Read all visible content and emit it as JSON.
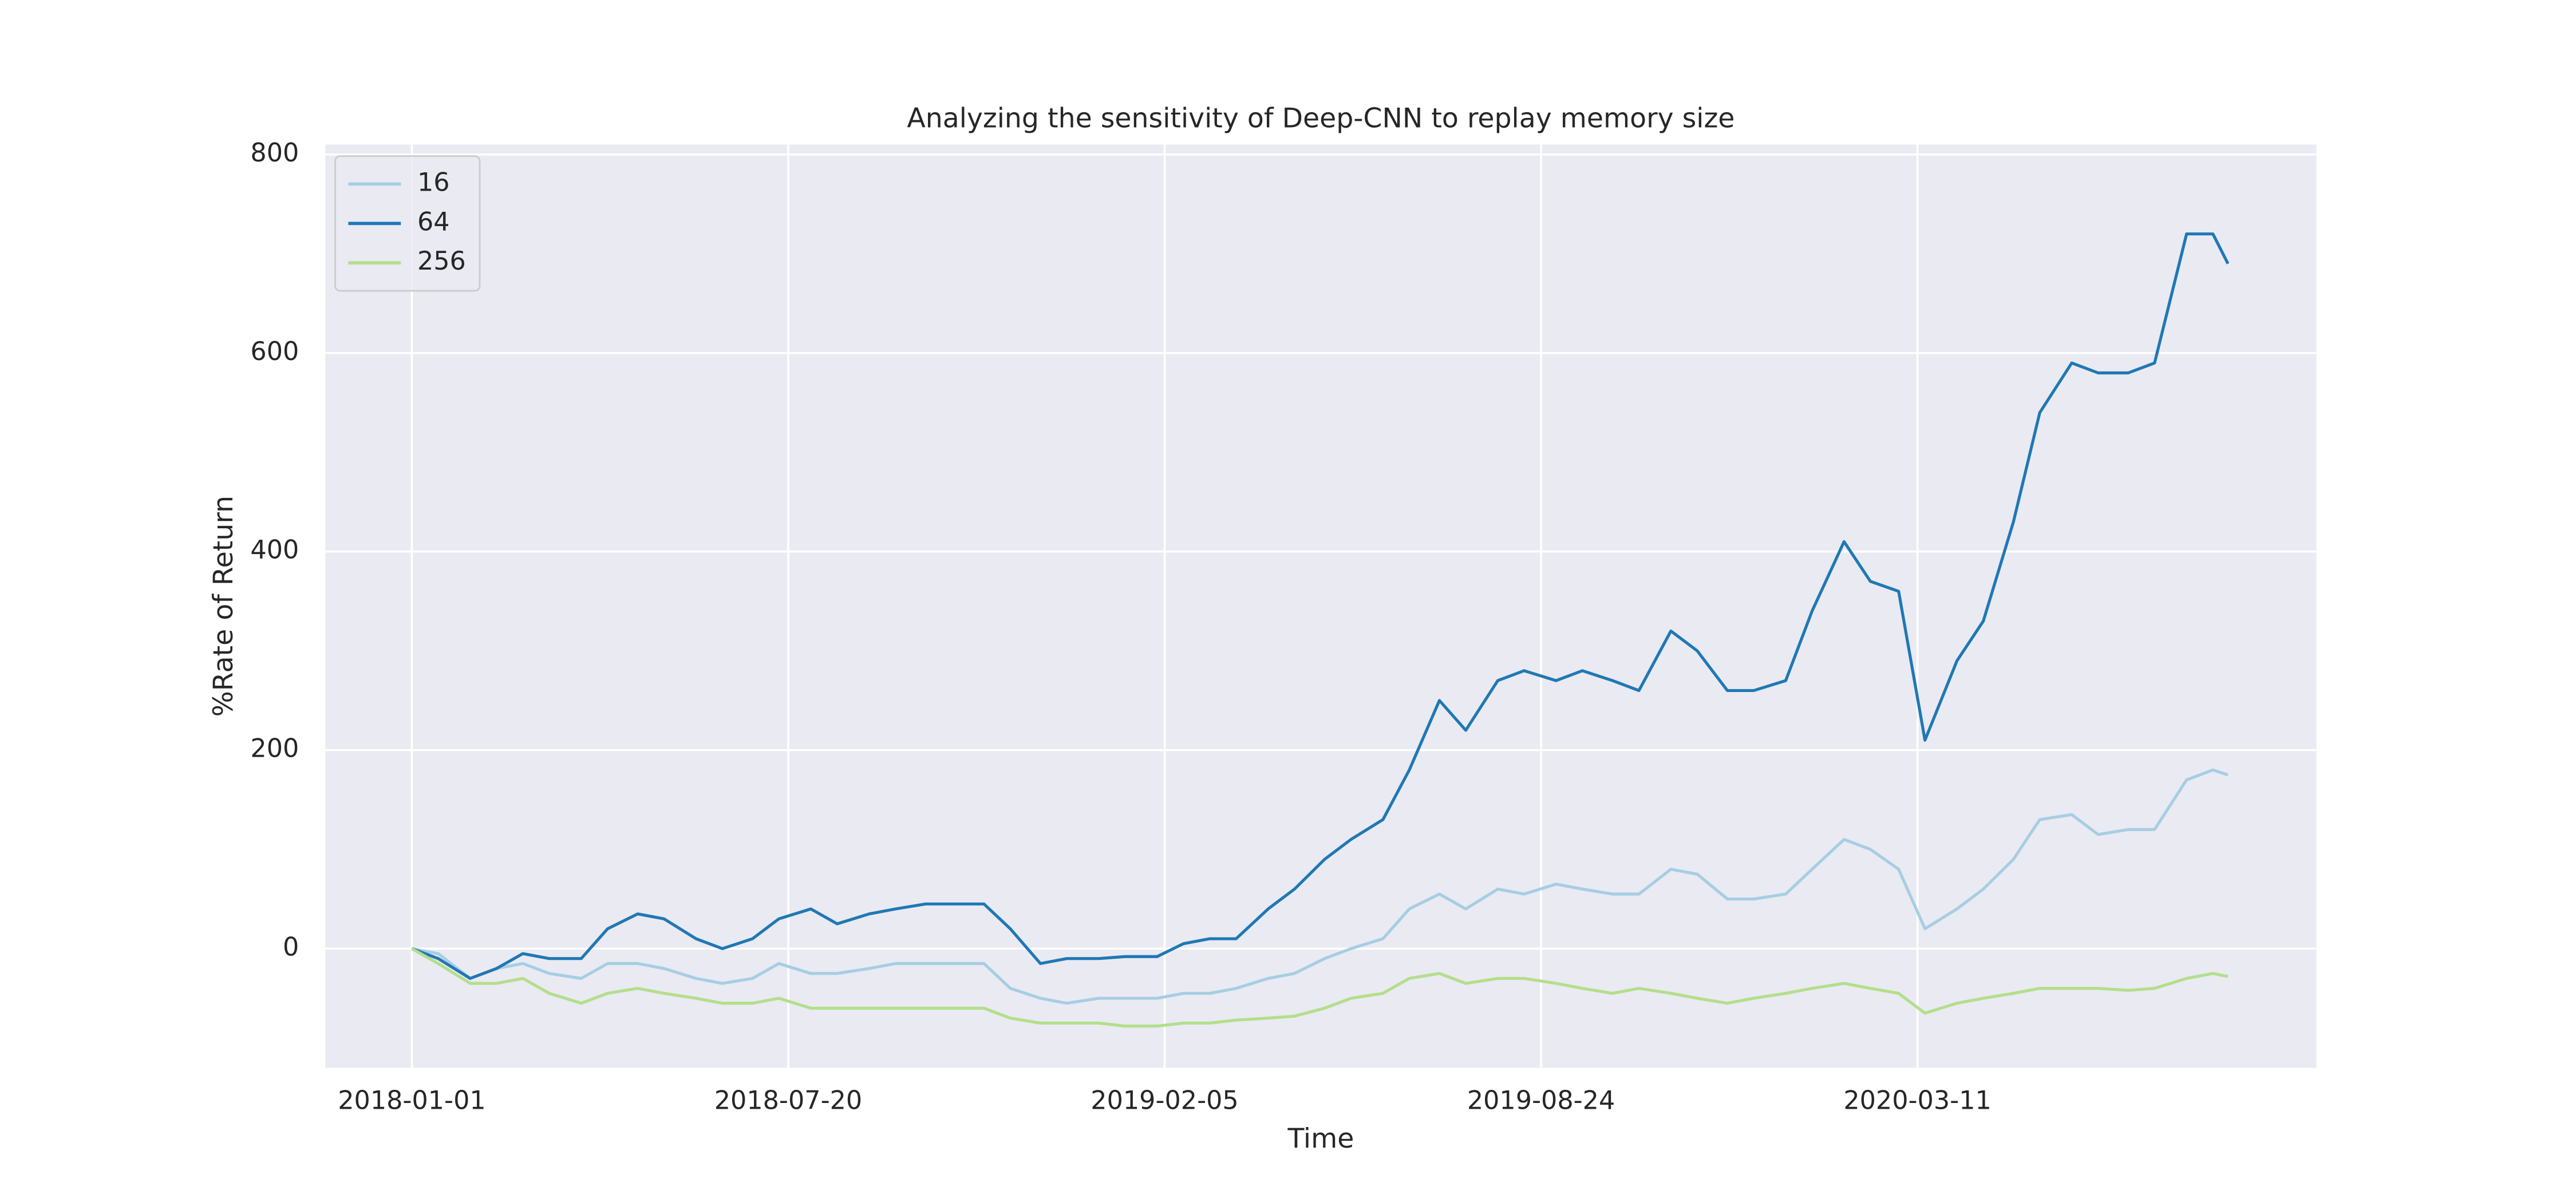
{
  "chart_data": {
    "type": "line",
    "title": "Analyzing the sensitivity of Deep-CNN to replay memory size",
    "x_label": "Time",
    "y_label": "%Rate of Return",
    "x": [
      "2018-01-01",
      "2018-01-15",
      "2018-02-01",
      "2018-02-15",
      "2018-03-01",
      "2018-03-15",
      "2018-04-01",
      "2018-04-15",
      "2018-05-01",
      "2018-05-15",
      "2018-06-01",
      "2018-06-15",
      "2018-07-01",
      "2018-07-15",
      "2018-08-01",
      "2018-08-15",
      "2018-09-01",
      "2018-09-15",
      "2018-10-01",
      "2018-10-15",
      "2018-11-01",
      "2018-11-15",
      "2018-12-01",
      "2018-12-15",
      "2019-01-01",
      "2019-01-15",
      "2019-02-01",
      "2019-02-15",
      "2019-03-01",
      "2019-03-15",
      "2019-04-01",
      "2019-04-15",
      "2019-05-01",
      "2019-05-15",
      "2019-06-01",
      "2019-06-15",
      "2019-07-01",
      "2019-07-15",
      "2019-08-01",
      "2019-08-15",
      "2019-09-01",
      "2019-09-15",
      "2019-10-01",
      "2019-10-15",
      "2019-11-01",
      "2019-11-15",
      "2019-12-01",
      "2019-12-15",
      "2020-01-01",
      "2020-01-15",
      "2020-02-01",
      "2020-02-15",
      "2020-03-01",
      "2020-03-15",
      "2020-04-01",
      "2020-04-15",
      "2020-05-01",
      "2020-05-15",
      "2020-06-01",
      "2020-06-15",
      "2020-07-01",
      "2020-07-15",
      "2020-08-01",
      "2020-08-15",
      "2020-08-23"
    ],
    "series": [
      {
        "name": "16",
        "color": "#a6cee3",
        "values": [
          0,
          -5,
          -30,
          -20,
          -15,
          -25,
          -30,
          -15,
          -15,
          -20,
          -30,
          -35,
          -30,
          -15,
          -25,
          -25,
          -20,
          -15,
          -15,
          -15,
          -15,
          -40,
          -50,
          -55,
          -50,
          -50,
          -50,
          -45,
          -45,
          -40,
          -30,
          -25,
          -10,
          0,
          10,
          40,
          55,
          40,
          60,
          55,
          65,
          60,
          55,
          55,
          80,
          75,
          50,
          50,
          55,
          80,
          110,
          100,
          80,
          20,
          40,
          60,
          90,
          130,
          135,
          115,
          120,
          120,
          170,
          180,
          175
        ]
      },
      {
        "name": "64",
        "color": "#1f78b4",
        "values": [
          0,
          -10,
          -30,
          -20,
          -5,
          -10,
          -10,
          20,
          35,
          30,
          10,
          0,
          10,
          30,
          40,
          25,
          35,
          40,
          45,
          45,
          45,
          20,
          -15,
          -10,
          -10,
          -8,
          -8,
          5,
          10,
          10,
          40,
          60,
          90,
          110,
          130,
          180,
          250,
          220,
          270,
          280,
          270,
          280,
          270,
          260,
          320,
          300,
          260,
          260,
          270,
          340,
          410,
          370,
          360,
          210,
          290,
          330,
          430,
          540,
          590,
          580,
          580,
          590,
          720,
          720,
          690
        ]
      },
      {
        "name": "256",
        "color": "#b2df8a",
        "values": [
          0,
          -15,
          -35,
          -35,
          -30,
          -45,
          -55,
          -45,
          -40,
          -45,
          -50,
          -55,
          -55,
          -50,
          -60,
          -60,
          -60,
          -60,
          -60,
          -60,
          -60,
          -70,
          -75,
          -75,
          -75,
          -78,
          -78,
          -75,
          -75,
          -72,
          -70,
          -68,
          -60,
          -50,
          -45,
          -30,
          -25,
          -35,
          -30,
          -30,
          -35,
          -40,
          -45,
          -40,
          -45,
          -50,
          -55,
          -50,
          -45,
          -40,
          -35,
          -40,
          -45,
          -65,
          -55,
          -50,
          -45,
          -40,
          -40,
          -40,
          -42,
          -40,
          -30,
          -25,
          -28
        ]
      }
    ],
    "xlim": [
      "2017-11-16",
      "2020-10-09"
    ],
    "xticks": [
      "2018-01-01",
      "2018-07-20",
      "2019-02-05",
      "2019-08-24",
      "2020-03-11"
    ],
    "ylim": [
      -120,
      810
    ],
    "yticks": [
      0,
      200,
      400,
      600,
      800
    ],
    "grid": true,
    "legend": "upper-left"
  }
}
